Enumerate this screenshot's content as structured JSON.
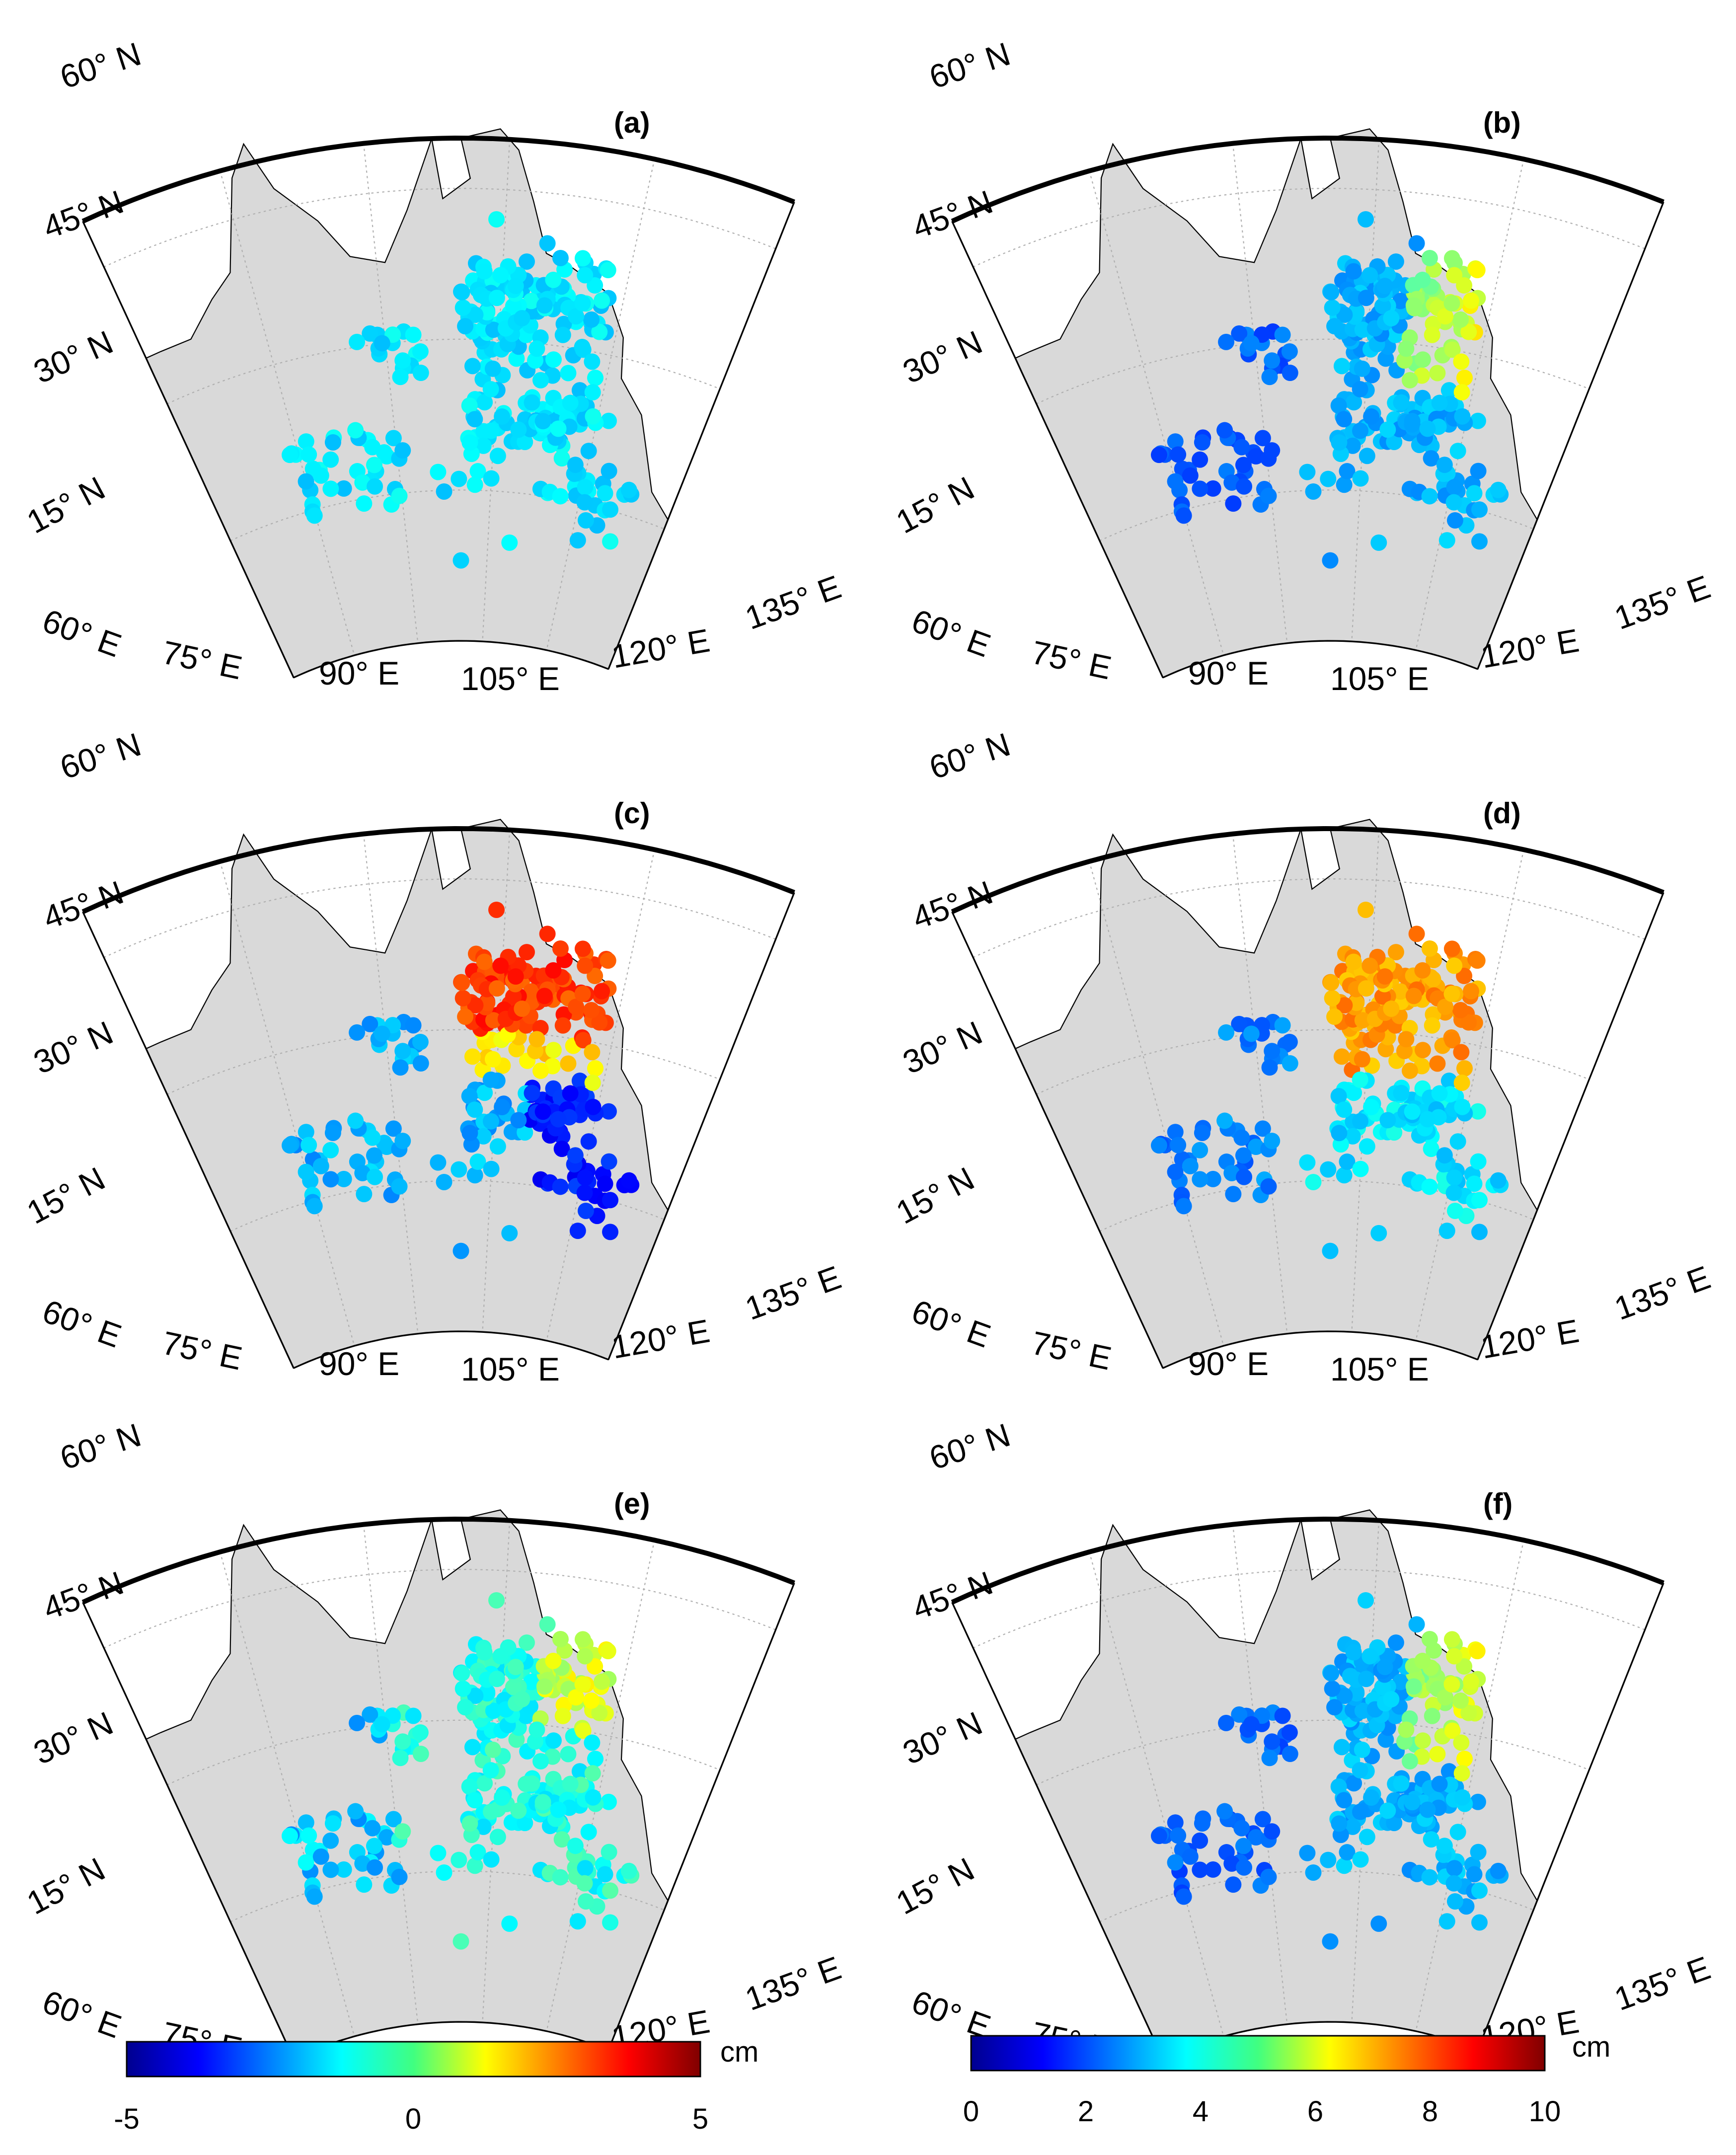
{
  "figure": {
    "panels": [
      {
        "label": "(a)",
        "colorbar": "a",
        "pattern": "a",
        "seed": 11
      },
      {
        "label": "(b)",
        "colorbar": "b",
        "pattern": "b",
        "seed": 23
      },
      {
        "label": "(c)",
        "colorbar": "a",
        "pattern": "c",
        "seed": 37
      },
      {
        "label": "(d)",
        "colorbar": "b",
        "pattern": "d",
        "seed": 41
      },
      {
        "label": "(e)",
        "colorbar": "a",
        "pattern": "e",
        "seed": 53
      },
      {
        "label": "(f)",
        "colorbar": "b",
        "pattern": "b",
        "seed": 67
      }
    ],
    "lat_labels": [
      "60° N",
      "45° N",
      "30° N",
      "15° N"
    ],
    "lon_labels": [
      "60° E",
      "75° E",
      "90° E",
      "105° E",
      "120° E",
      "135° E"
    ],
    "land_color": "#d9d9d9",
    "graticule_color": "#b0b0b0"
  },
  "colorbars": {
    "a": {
      "min": -5,
      "max": 5,
      "ticks": [
        "-5",
        "0",
        "5"
      ],
      "unit": "cm",
      "colormap": "jet"
    },
    "b": {
      "min": 0,
      "max": 10,
      "ticks": [
        "0",
        "2",
        "4",
        "6",
        "8",
        "10"
      ],
      "unit": "cm",
      "colormap": "jet"
    }
  }
}
